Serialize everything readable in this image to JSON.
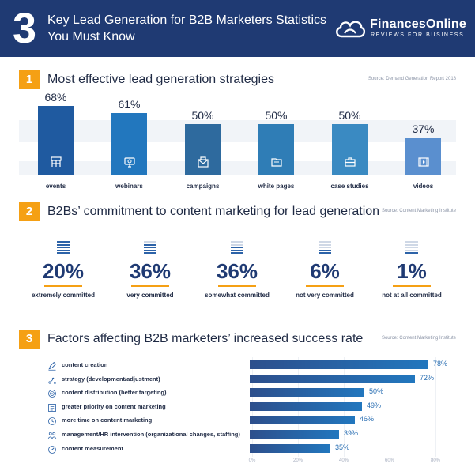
{
  "header": {
    "number": "3",
    "title_line1": "Key Lead Generation for B2B Marketers Statistics",
    "title_line2": "You Must Know",
    "brand_name": "FinancesOnline",
    "brand_tagline": "REVIEWS FOR BUSINESS"
  },
  "colors": {
    "navy": "#1f3a73",
    "orange": "#f5a014",
    "blue": "#2277be",
    "steel": "#3d7fb0"
  },
  "sections": [
    {
      "number": "1",
      "title": "Most effective lead generation strategies",
      "source": "Source: Demand Generation Report 2018"
    },
    {
      "number": "2",
      "title": "B2Bs’ commitment to content marketing for lead generation",
      "source": "Source: Content Marketing Institute"
    },
    {
      "number": "3",
      "title": "Factors affecting B2B marketers’ increased success rate",
      "source": "Source: Content Marketing Institute"
    }
  ],
  "chart_data": [
    {
      "type": "bar",
      "title": "Most effective lead generation strategies",
      "categories": [
        "events",
        "webinars",
        "campaigns",
        "white pages",
        "case studies",
        "videos"
      ],
      "values": [
        68,
        61,
        50,
        50,
        50,
        37
      ],
      "value_labels": [
        "68%",
        "61%",
        "50%",
        "50%",
        "50%",
        "37%"
      ],
      "icons": [
        "scaffold-icon",
        "monitor-icon",
        "envelope-icon",
        "folder-icon",
        "briefcase-icon",
        "film-icon"
      ],
      "bar_colors": [
        "#1f5aa0",
        "#2277be",
        "#2e6a9e",
        "#2f7db6",
        "#3a8ac2",
        "#5a8fcf"
      ],
      "ylim": [
        0,
        68
      ]
    },
    {
      "type": "table",
      "title": "B2Bs’ commitment to content marketing for lead generation",
      "categories": [
        "extremely committed",
        "very committed",
        "somewhat committed",
        "not very committed",
        "not at all committed"
      ],
      "values": [
        20,
        36,
        36,
        6,
        1
      ],
      "value_labels": [
        "20%",
        "36%",
        "36%",
        "6%",
        "1%"
      ],
      "filled_lines": [
        5,
        4,
        3,
        2,
        1
      ]
    },
    {
      "type": "bar",
      "orientation": "horizontal",
      "title": "Factors affecting B2B marketers’ increased success rate",
      "categories": [
        "content creation",
        "strategy (development/adjustment)",
        "content distribution (better targeting)",
        "greater priority on content marketing",
        "more time on content marketing",
        "management/HR intervention (organizational changes, staffing)",
        "content measurement"
      ],
      "values": [
        78,
        72,
        50,
        49,
        46,
        39,
        35
      ],
      "value_labels": [
        "78%",
        "72%",
        "50%",
        "49%",
        "46%",
        "39%",
        "35%"
      ],
      "icons": [
        "pen-icon",
        "strategy-icon",
        "target-icon",
        "priority-icon",
        "clock-icon",
        "people-icon",
        "gauge-icon"
      ],
      "xlim": [
        0,
        80
      ],
      "xticks": [
        "0%",
        "20%",
        "40%",
        "60%",
        "80%"
      ]
    }
  ]
}
